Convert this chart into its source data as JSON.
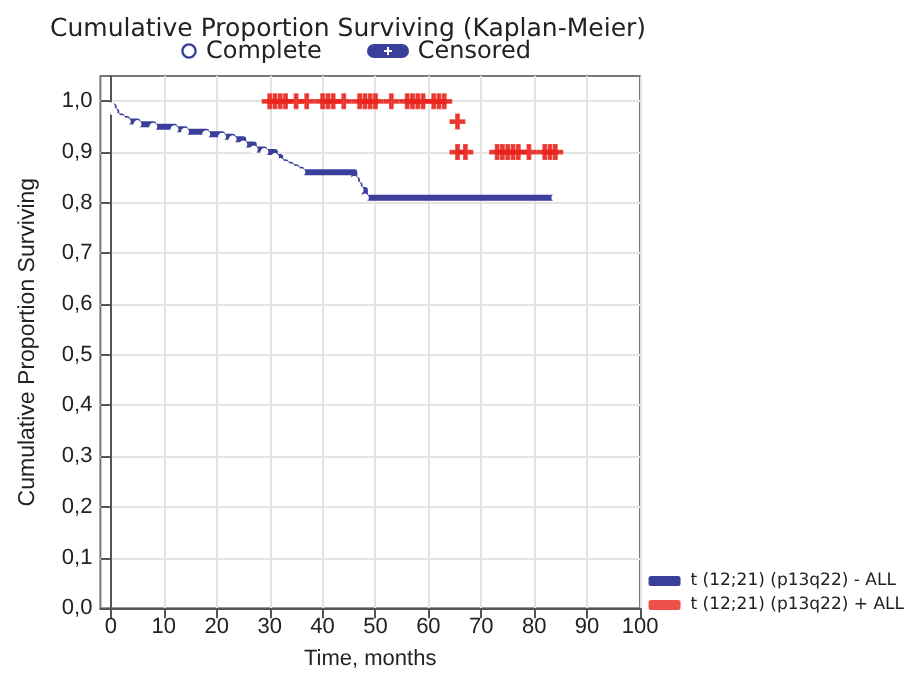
{
  "chart_data": {
    "type": "step",
    "title": "Cumulative Proportion Surviving (Kaplan-Meier)",
    "xlabel": "Time, months",
    "ylabel": "Cumulative Proportion Surviving",
    "annotations": [
      "Complete",
      "Censored"
    ],
    "xlim": [
      -2,
      100
    ],
    "xticks": [
      0,
      10,
      20,
      30,
      40,
      50,
      60,
      70,
      80,
      90,
      100
    ],
    "ylim": [
      0,
      1.05
    ],
    "yticks": [
      {
        "value": 0,
        "label": "0,0"
      },
      {
        "value": 0.1,
        "label": "0,1"
      },
      {
        "value": 0.2,
        "label": "0,2"
      },
      {
        "value": 0.3,
        "label": "0,3"
      },
      {
        "value": 0.4,
        "label": "0,4"
      },
      {
        "value": 0.5,
        "label": "0,5"
      },
      {
        "value": 0.6,
        "label": "0,6"
      },
      {
        "value": 0.7,
        "label": "0,7"
      },
      {
        "value": 0.8,
        "label": "0,8"
      },
      {
        "value": 0.9,
        "label": "0,9"
      },
      {
        "value": 1,
        "label": "1,0"
      }
    ],
    "grid": true,
    "legend": "bottom right",
    "series": [
      {
        "name": "t (12;21) (p13q22) - ALL",
        "marker": "circle",
        "color": "#3a3f9c",
        "x": [
          0,
          0.5,
          1,
          2,
          3,
          5,
          8,
          12,
          14,
          18,
          21,
          23,
          25,
          27,
          29,
          31,
          32,
          33,
          34,
          35,
          36,
          46,
          46.5,
          47,
          48,
          84
        ],
        "values": [
          0.99,
          0.98,
          0.97,
          0.965,
          0.96,
          0.955,
          0.95,
          0.945,
          0.94,
          0.935,
          0.93,
          0.925,
          0.915,
          0.905,
          0.9,
          0.89,
          0.88,
          0.875,
          0.87,
          0.865,
          0.86,
          0.845,
          0.835,
          0.825,
          0.81,
          0.81
        ]
      },
      {
        "name": "t (12;21) (p13q22) + ALL",
        "type": "scatter",
        "marker": "cross",
        "color": "#e8231c",
        "x": [
          30,
          31,
          32,
          33,
          35,
          37,
          40,
          41,
          42,
          44,
          47,
          48,
          49,
          50,
          53,
          56,
          57,
          58,
          59,
          61,
          62,
          63,
          65.5,
          65.5,
          67,
          73,
          74,
          75,
          76,
          77,
          79,
          82,
          83,
          84
        ],
        "values": [
          1,
          1,
          1,
          1,
          1,
          1,
          1,
          1,
          1,
          1,
          1,
          1,
          1,
          1,
          1,
          1,
          1,
          1,
          1,
          1,
          1,
          1,
          0.96,
          0.9,
          0.9,
          0.9,
          0.9,
          0.9,
          0.9,
          0.9,
          0.9,
          0.9,
          0.9,
          0.9
        ]
      }
    ]
  }
}
